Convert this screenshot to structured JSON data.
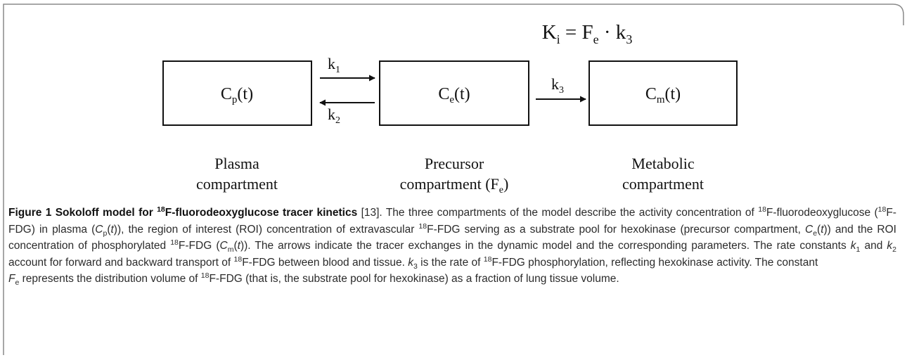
{
  "formula": [
    "K",
    "i",
    " = F",
    "e",
    " · k",
    "3"
  ],
  "boxes": [
    [
      "C",
      "p",
      "(t)"
    ],
    [
      "C",
      "e",
      "(t)"
    ],
    [
      "C",
      "m",
      "(t)"
    ]
  ],
  "arrows": [
    [
      "k",
      "1"
    ],
    [
      "k",
      "2"
    ],
    [
      "k",
      "3"
    ]
  ],
  "compartments": [
    [
      [
        "Plasma"
      ],
      [
        "compartment"
      ]
    ],
    [
      [
        "Precursor"
      ],
      [
        "compartment (F",
        "e",
        ")"
      ]
    ],
    [
      [
        "Metabolic"
      ],
      [
        "compartment"
      ]
    ]
  ],
  "caption": {
    "title": [
      "Figure 1 Sokoloff model for ",
      "18",
      "F-fluorodeoxyglucose tracer kinetics"
    ],
    "body": [
      " [13]. The three compartments of the model describe the activity concentration of ",
      "18",
      "F-fluorodeoxyglucose (",
      "18",
      "F-FDG) in plasma (",
      "C",
      "p",
      "(",
      "t",
      ")), the region of interest (ROI) concentration of extravascular ",
      "18",
      "F-FDG serving as a substrate pool for hexokinase (precursor compartment, ",
      "C",
      "e",
      "(",
      "t",
      ")) and the ROI concentration of phosphorylated ",
      "18",
      "F-FDG (",
      "C",
      "m",
      "(",
      "t",
      ")). The arrows indicate the tracer exchanges in the dynamic model and the corresponding parameters. The rate constants ",
      "k",
      "1",
      " and ",
      "k",
      "2",
      " account for forward and backward transport of ",
      "18",
      "F-FDG between blood and tissue. ",
      "k",
      "3",
      " is the rate of ",
      "18",
      "F-FDG phosphorylation, reflecting hexokinase activity. The constant",
      "F",
      "e",
      " represents the distribution volume of ",
      "18",
      "F-FDG (that is, the substrate pool for hexokinase) as a fraction of lung tissue volume."
    ]
  }
}
